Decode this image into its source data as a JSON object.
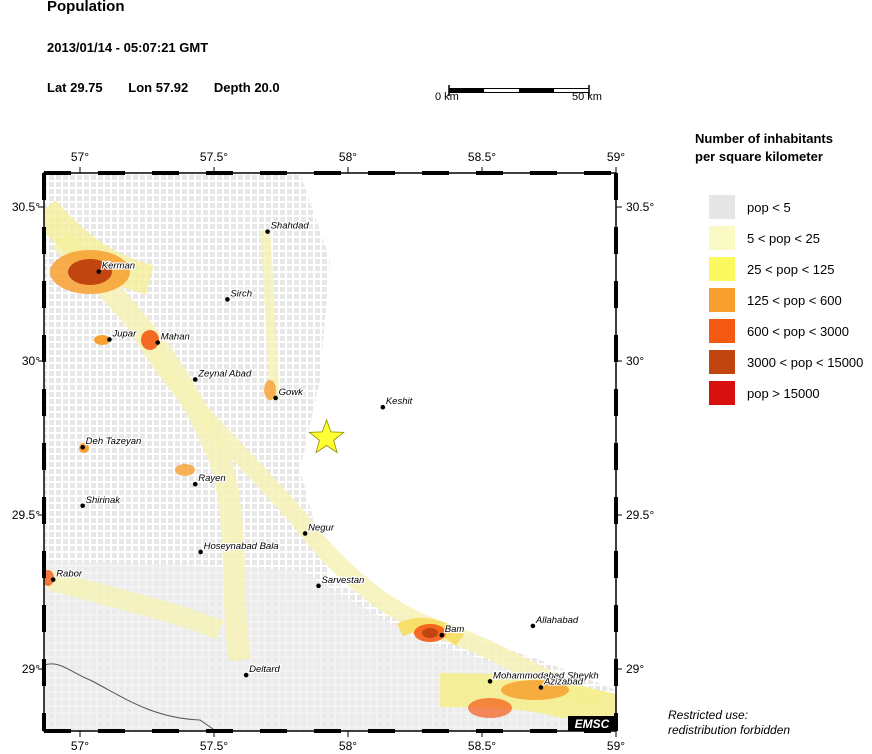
{
  "header": {
    "title": "Population",
    "datetime": "2013/01/14 - 05:07:21 GMT",
    "lat_label": "Lat 29.75",
    "lon_label": "Lon  57.92",
    "depth_label": "Depth  20.0"
  },
  "scale_bar": {
    "start_label": "0 km",
    "end_label": "50 km"
  },
  "map": {
    "lon_ticks": [
      "57°",
      "57.5°",
      "58°",
      "58.5°",
      "59°"
    ],
    "lat_ticks": [
      "30.5°",
      "30°",
      "29.5°",
      "29°"
    ],
    "lon_values": [
      57.0,
      57.5,
      58.0,
      58.5,
      59.0
    ],
    "lat_values": [
      30.5,
      30.0,
      29.5,
      29.0
    ],
    "epicenter": {
      "lat": 29.75,
      "lon": 57.92,
      "color": "#ffff33"
    },
    "badge": "EMSC",
    "cities": [
      {
        "name": "Shahdad",
        "lat": 30.42,
        "lon": 57.7
      },
      {
        "name": "Kerman",
        "lat": 30.29,
        "lon": 57.07
      },
      {
        "name": "Sirch",
        "lat": 30.2,
        "lon": 57.55
      },
      {
        "name": "Jupar",
        "lat": 30.07,
        "lon": 57.11
      },
      {
        "name": "Mahan",
        "lat": 30.06,
        "lon": 57.29
      },
      {
        "name": "Zeynal Abad",
        "lat": 29.94,
        "lon": 57.43
      },
      {
        "name": "Gowk",
        "lat": 29.88,
        "lon": 57.73
      },
      {
        "name": "Keshit",
        "lat": 29.85,
        "lon": 58.13
      },
      {
        "name": "Deh Tazeyan",
        "lat": 29.72,
        "lon": 57.01
      },
      {
        "name": "Rayen",
        "lat": 29.6,
        "lon": 57.43
      },
      {
        "name": "Shirinak",
        "lat": 29.53,
        "lon": 57.01
      },
      {
        "name": "Negur",
        "lat": 29.44,
        "lon": 57.84
      },
      {
        "name": "Hoseynabad Bala",
        "lat": 29.38,
        "lon": 57.45
      },
      {
        "name": "Rabor",
        "lat": 29.29,
        "lon": 56.9
      },
      {
        "name": "Sarvestan",
        "lat": 29.27,
        "lon": 57.89
      },
      {
        "name": "Bam",
        "lat": 29.11,
        "lon": 58.35
      },
      {
        "name": "Allahabad",
        "lat": 29.14,
        "lon": 58.69
      },
      {
        "name": "Deltard",
        "lat": 28.98,
        "lon": 57.62
      },
      {
        "name": "Mohammodabad Sheykh",
        "lat": 28.96,
        "lon": 58.53
      },
      {
        "name": "Azizabad",
        "lat": 28.94,
        "lon": 58.72
      }
    ]
  },
  "legend": {
    "title_line1": "Number of inhabitants",
    "title_line2": "per square kilometer",
    "items": [
      {
        "label": "pop < 5",
        "color": "#e6e6e6"
      },
      {
        "label": "5 < pop < 25",
        "color": "#fafac4"
      },
      {
        "label": "25 < pop < 125",
        "color": "#fafa5e"
      },
      {
        "label": "125 < pop < 600",
        "color": "#f7a030"
      },
      {
        "label": "600 < pop < 3000",
        "color": "#f45a14"
      },
      {
        "label": "3000 < pop < 15000",
        "color": "#c04510"
      },
      {
        "label": "pop > 15000",
        "color": "#d81010"
      }
    ]
  },
  "notes": {
    "line1": "Restricted use:",
    "line2": "redistribution forbidden"
  }
}
